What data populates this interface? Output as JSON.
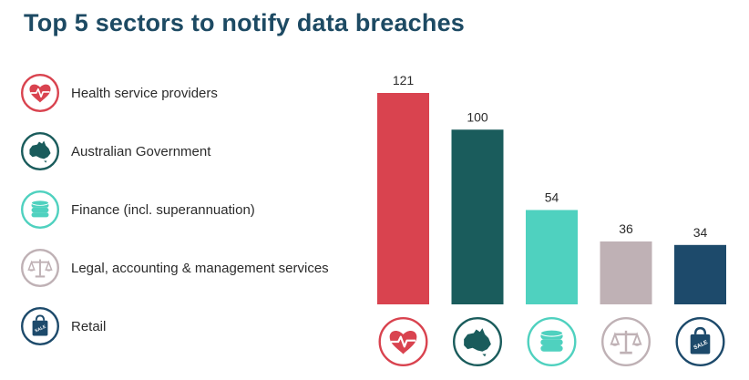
{
  "title": "Top 5 sectors to notify data breaches",
  "legend": [
    {
      "label": "Health service providers",
      "icon": "heart-pulse-icon",
      "color": "#d9434f"
    },
    {
      "label": "Australian Government",
      "icon": "australia-map-icon",
      "color": "#1a5c5c"
    },
    {
      "label": "Finance (incl. superannuation)",
      "icon": "coin-stack-icon",
      "color": "#4fd1bf"
    },
    {
      "label": "Legal, accounting & management services",
      "icon": "scales-icon",
      "color": "#bfb1b5"
    },
    {
      "label": "Retail",
      "icon": "shopping-bag-icon",
      "color": "#1d4a6b"
    }
  ],
  "chart_data": {
    "type": "bar",
    "categories": [
      "Health service providers",
      "Australian Government",
      "Finance (incl. superannuation)",
      "Legal, accounting & management services",
      "Retail"
    ],
    "values": [
      121,
      100,
      54,
      36,
      34
    ],
    "value_labels": [
      "121",
      "100",
      "54",
      "36",
      "34"
    ],
    "colors": [
      "#d9434f",
      "#1a5c5c",
      "#4fd1bf",
      "#bfb1b5",
      "#1d4a6b"
    ],
    "title": "Top 5 sectors to notify data breaches",
    "xlabel": "",
    "ylabel": "",
    "ylim": [
      0,
      121
    ],
    "grid": false,
    "legend_position": "left"
  }
}
